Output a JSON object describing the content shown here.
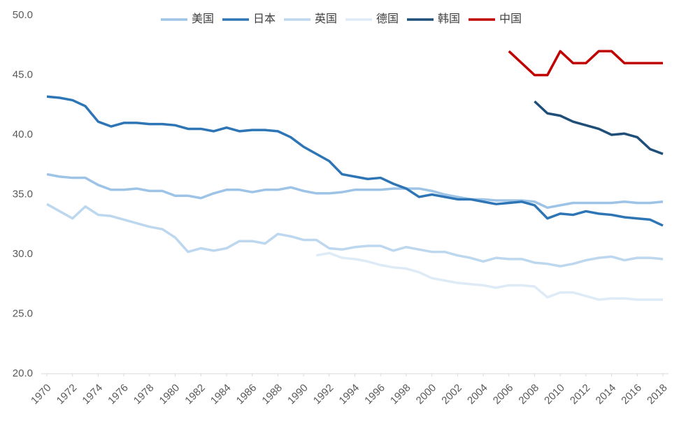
{
  "chart_data": {
    "type": "line",
    "x": [
      1970,
      1971,
      1972,
      1973,
      1974,
      1975,
      1976,
      1977,
      1978,
      1979,
      1980,
      1981,
      1982,
      1983,
      1984,
      1985,
      1986,
      1987,
      1988,
      1989,
      1990,
      1991,
      1992,
      1993,
      1994,
      1995,
      1996,
      1997,
      1998,
      1999,
      2000,
      2001,
      2002,
      2003,
      2004,
      2005,
      2006,
      2007,
      2008,
      2009,
      2010,
      2011,
      2012,
      2013,
      2014,
      2015,
      2016,
      2017,
      2018
    ],
    "xlim": [
      1970,
      2018
    ],
    "xticks": [
      1970,
      1972,
      1974,
      1976,
      1978,
      1980,
      1982,
      1984,
      1986,
      1988,
      1990,
      1992,
      1994,
      1996,
      1998,
      2000,
      2002,
      2004,
      2006,
      2008,
      2010,
      2012,
      2014,
      2016,
      2018
    ],
    "ylim": [
      20,
      50
    ],
    "yticks": [
      {
        "value": 20,
        "label": "20.0"
      },
      {
        "value": 25,
        "label": "25.0"
      },
      {
        "value": 30,
        "label": "30.0"
      },
      {
        "value": 35,
        "label": "35.0"
      },
      {
        "value": 40,
        "label": "40.0"
      },
      {
        "value": 45,
        "label": "45.0"
      },
      {
        "value": 50,
        "label": "50.0"
      }
    ],
    "grid": false,
    "legend": "top",
    "series": [
      {
        "name": "美国",
        "color": "#9dc3e6",
        "values": [
          36.7,
          36.5,
          36.4,
          36.4,
          35.8,
          35.4,
          35.4,
          35.5,
          35.3,
          35.3,
          34.9,
          34.9,
          34.7,
          35.1,
          35.4,
          35.4,
          35.2,
          35.4,
          35.4,
          35.6,
          35.3,
          35.1,
          35.1,
          35.2,
          35.4,
          35.4,
          35.4,
          35.5,
          35.5,
          35.5,
          35.3,
          35.0,
          34.8,
          34.6,
          34.6,
          34.5,
          34.5,
          34.5,
          34.4,
          33.9,
          34.1,
          34.3,
          34.3,
          34.3,
          34.3,
          34.4,
          34.3,
          34.3,
          34.4
        ]
      },
      {
        "name": "日本",
        "color": "#2e75b6",
        "values": [
          43.2,
          43.1,
          42.9,
          42.4,
          41.1,
          40.7,
          41.0,
          41.0,
          40.9,
          40.9,
          40.8,
          40.5,
          40.5,
          40.3,
          40.6,
          40.3,
          40.4,
          40.4,
          40.3,
          39.8,
          39.0,
          38.4,
          37.8,
          36.7,
          36.5,
          36.3,
          36.4,
          35.9,
          35.5,
          34.8,
          35.0,
          34.8,
          34.6,
          34.6,
          34.4,
          34.2,
          34.3,
          34.4,
          34.1,
          33.0,
          33.4,
          33.3,
          33.6,
          33.4,
          33.3,
          33.1,
          33.0,
          32.9,
          32.4
        ]
      },
      {
        "name": "英国",
        "color": "#bdd7ee",
        "values": [
          34.2,
          33.6,
          33.0,
          34.0,
          33.3,
          33.2,
          32.9,
          32.6,
          32.3,
          32.1,
          31.4,
          30.2,
          30.5,
          30.3,
          30.5,
          31.1,
          31.1,
          30.9,
          31.7,
          31.5,
          31.2,
          31.2,
          30.5,
          30.4,
          30.6,
          30.7,
          30.7,
          30.3,
          30.6,
          30.4,
          30.2,
          30.2,
          29.9,
          29.7,
          29.4,
          29.7,
          29.6,
          29.6,
          29.3,
          29.2,
          29.0,
          29.2,
          29.5,
          29.7,
          29.8,
          29.5,
          29.7,
          29.7,
          29.6
        ]
      },
      {
        "name": "德国",
        "color": "#deebf7",
        "values": [
          null,
          null,
          null,
          null,
          null,
          null,
          null,
          null,
          null,
          null,
          null,
          null,
          null,
          null,
          null,
          null,
          null,
          null,
          null,
          null,
          null,
          29.9,
          30.1,
          29.7,
          29.6,
          29.4,
          29.1,
          28.9,
          28.8,
          28.5,
          28.0,
          27.8,
          27.6,
          27.5,
          27.4,
          27.2,
          27.4,
          27.4,
          27.3,
          26.4,
          26.8,
          26.8,
          26.5,
          26.2,
          26.3,
          26.3,
          26.2,
          26.2,
          26.2
        ]
      },
      {
        "name": "韩国",
        "color": "#1f4e79",
        "values": [
          null,
          null,
          null,
          null,
          null,
          null,
          null,
          null,
          null,
          null,
          null,
          null,
          null,
          null,
          null,
          null,
          null,
          null,
          null,
          null,
          null,
          null,
          null,
          null,
          null,
          null,
          null,
          null,
          null,
          null,
          null,
          null,
          null,
          null,
          null,
          null,
          null,
          null,
          42.8,
          41.8,
          41.6,
          41.1,
          40.8,
          40.5,
          40.0,
          40.1,
          39.8,
          38.8,
          38.4
        ]
      },
      {
        "name": "中国",
        "color": "#c00000",
        "values": [
          null,
          null,
          null,
          null,
          null,
          null,
          null,
          null,
          null,
          null,
          null,
          null,
          null,
          null,
          null,
          null,
          null,
          null,
          null,
          null,
          null,
          null,
          null,
          null,
          null,
          null,
          null,
          null,
          null,
          null,
          null,
          null,
          null,
          null,
          null,
          null,
          47.0,
          46.0,
          45.0,
          45.0,
          47.0,
          46.0,
          46.0,
          47.0,
          47.0,
          46.0,
          46.0,
          46.0,
          46.0
        ]
      }
    ]
  }
}
